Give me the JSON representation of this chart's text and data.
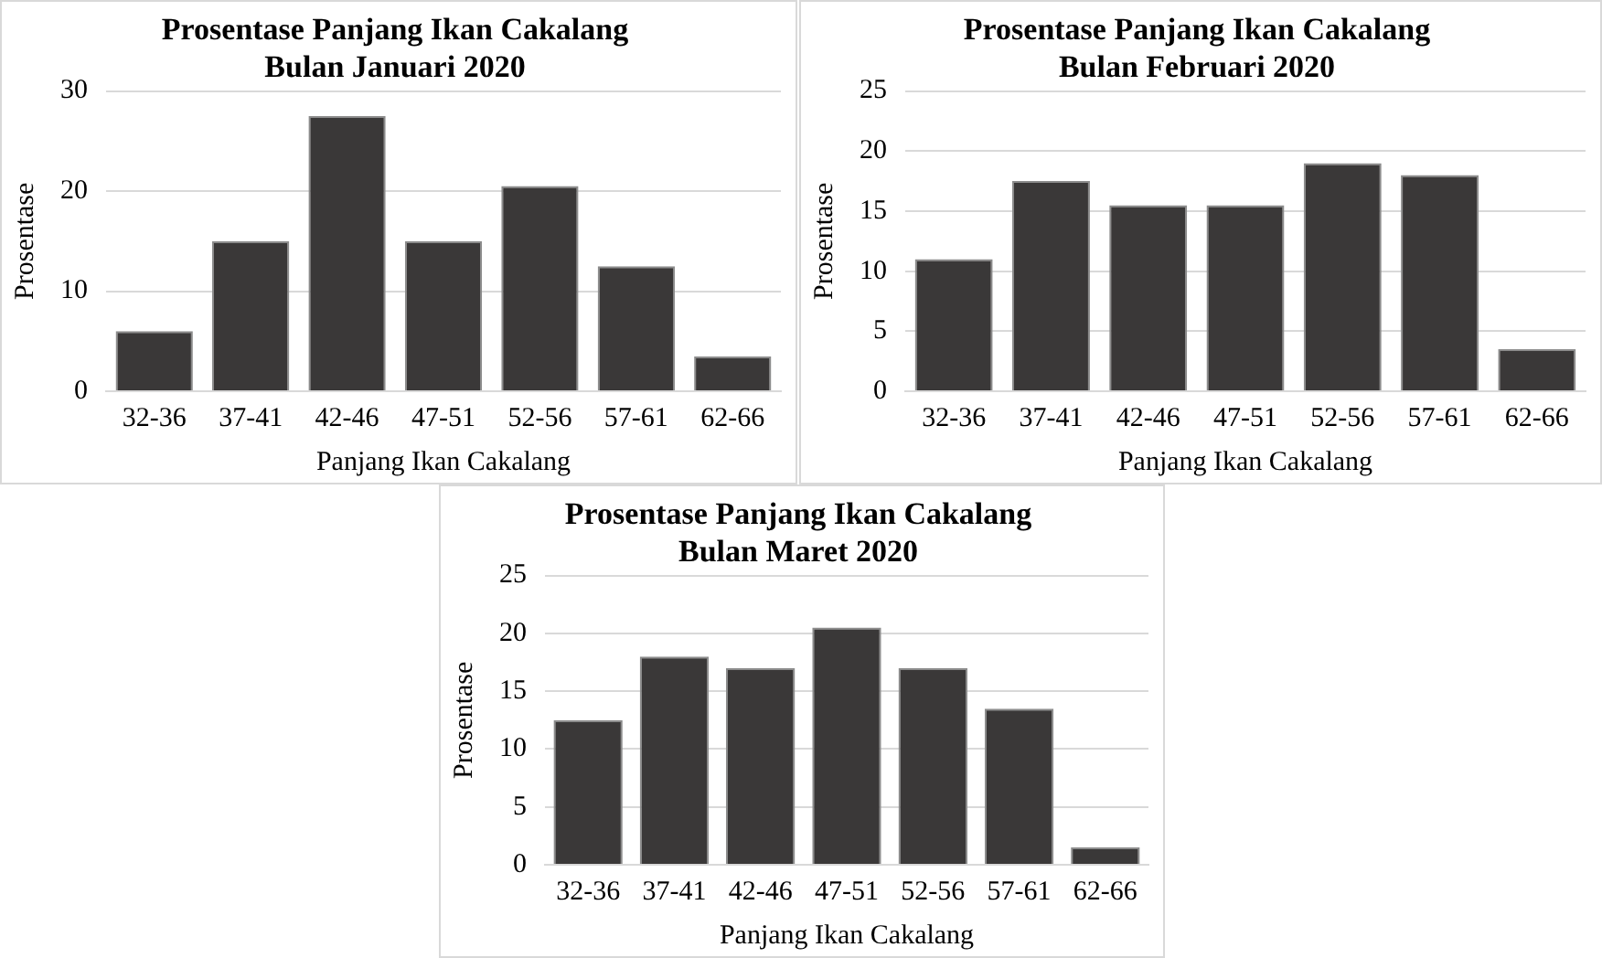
{
  "chart_data": [
    {
      "type": "bar",
      "title": "Prosentase Panjang Ikan Cakalang",
      "subtitle": "Bulan Januari 2020",
      "xlabel": "Panjang Ikan Cakalang",
      "ylabel": "Prosentase",
      "categories": [
        "32-36",
        "37-41",
        "42-46",
        "47-51",
        "52-56",
        "57-61",
        "62-66"
      ],
      "values": [
        6,
        15,
        27.5,
        15,
        20.5,
        12.5,
        3.5
      ],
      "color": "#3a3838",
      "ylim": [
        0,
        30
      ],
      "yticks": [
        0,
        10,
        20,
        30
      ],
      "grid": "y",
      "legend": false
    },
    {
      "type": "bar",
      "title": "Prosentase Panjang Ikan Cakalang",
      "subtitle": "Bulan Februari 2020",
      "xlabel": "Panjang Ikan Cakalang",
      "ylabel": "Prosentase",
      "categories": [
        "32-36",
        "37-41",
        "42-46",
        "47-51",
        "52-56",
        "57-61",
        "62-66"
      ],
      "values": [
        11,
        17.5,
        15.5,
        15.5,
        19,
        18,
        3.5
      ],
      "color": "#3a3838",
      "ylim": [
        0,
        25
      ],
      "yticks": [
        0,
        5,
        10,
        15,
        20,
        25
      ],
      "grid": "y",
      "legend": false
    },
    {
      "type": "bar",
      "title": "Prosentase Panjang Ikan Cakalang",
      "subtitle": "Bulan Maret 2020",
      "xlabel": "Panjang Ikan Cakalang",
      "ylabel": "Prosentase",
      "categories": [
        "32-36",
        "37-41",
        "42-46",
        "47-51",
        "52-56",
        "57-61",
        "62-66"
      ],
      "values": [
        12.5,
        18,
        17,
        20.5,
        17,
        13.5,
        1.5
      ],
      "color": "#3a3838",
      "ylim": [
        0,
        25
      ],
      "yticks": [
        0,
        5,
        10,
        15,
        20,
        25
      ],
      "grid": "y",
      "legend": false
    }
  ]
}
